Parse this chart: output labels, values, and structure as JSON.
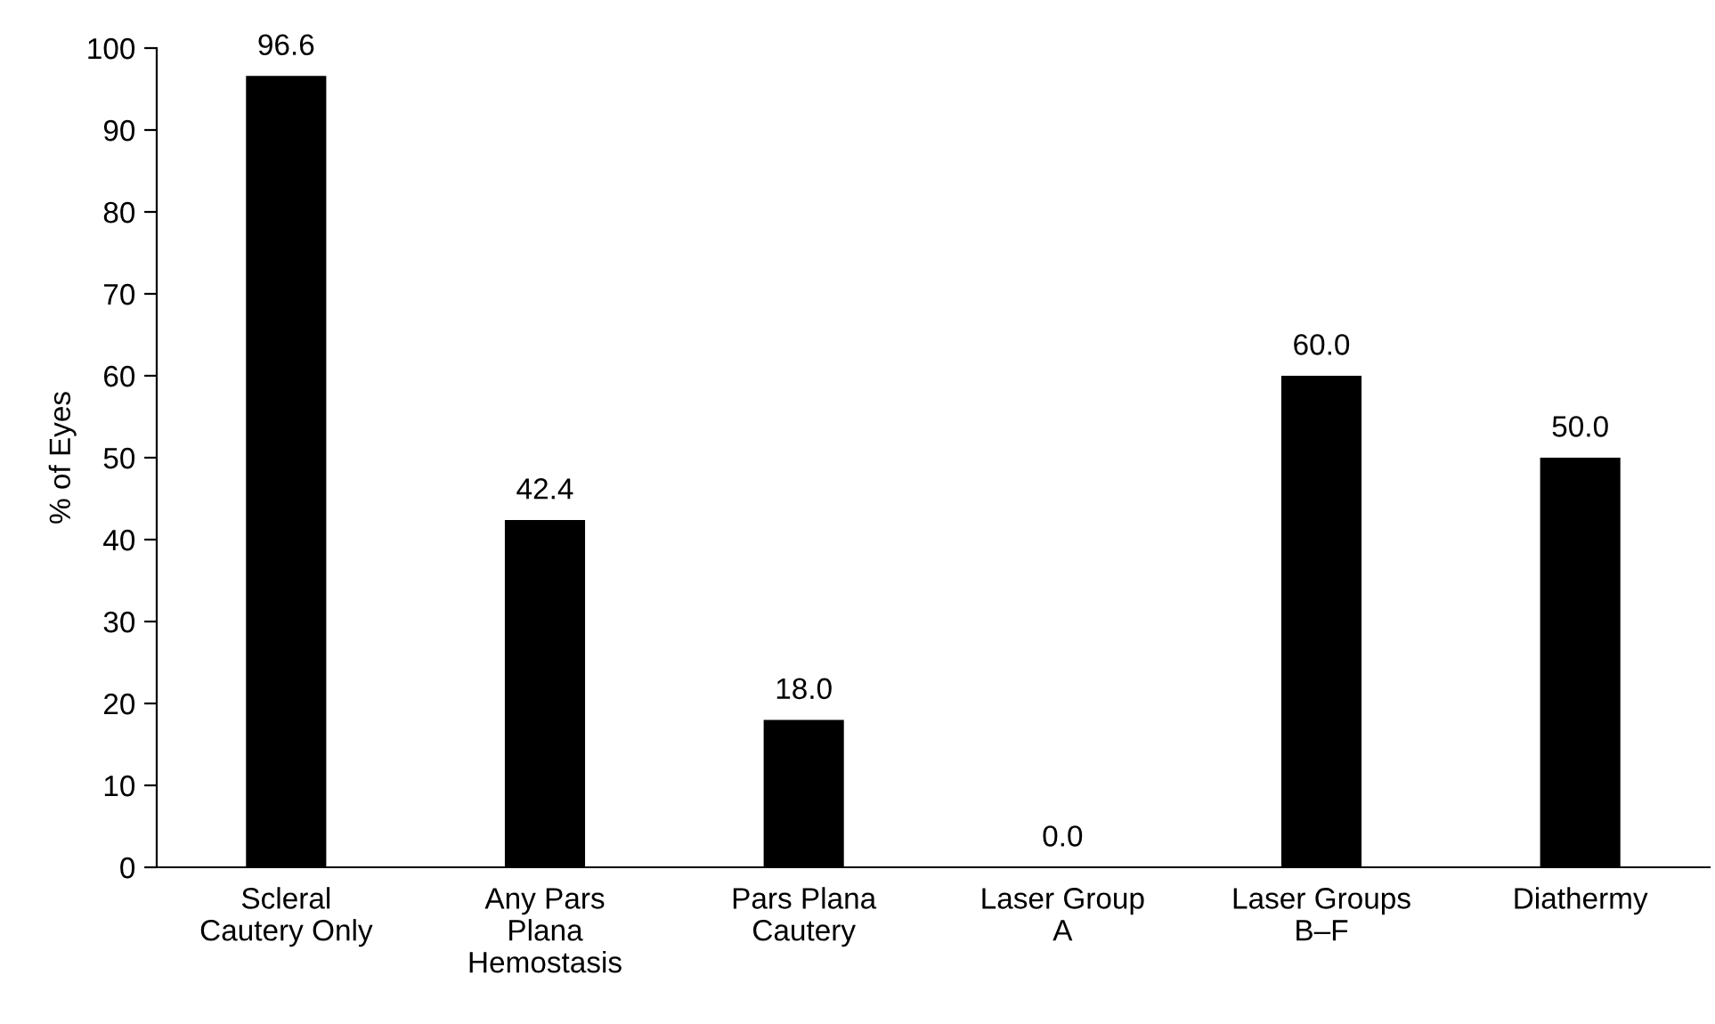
{
  "chart_data": {
    "type": "bar",
    "categories": [
      "Scleral\nCautery Only",
      "Any Pars\nPlana\nHemostasis",
      "Pars Plana\nCautery",
      "Laser Group\nA",
      "Laser Groups\nB–F",
      "Diathermy"
    ],
    "values": [
      96.6,
      42.4,
      18.0,
      0.0,
      60.0,
      50.0
    ],
    "value_labels": [
      "96.6",
      "42.4",
      "18.0",
      "0.0",
      "60.0",
      "50.0"
    ],
    "color": "#000000",
    "ylabel": "% of Eyes",
    "ylim": [
      0,
      100
    ],
    "yticks": [
      0,
      10,
      20,
      30,
      40,
      50,
      60,
      70,
      80,
      90,
      100
    ],
    "grid": false,
    "legend": false
  }
}
